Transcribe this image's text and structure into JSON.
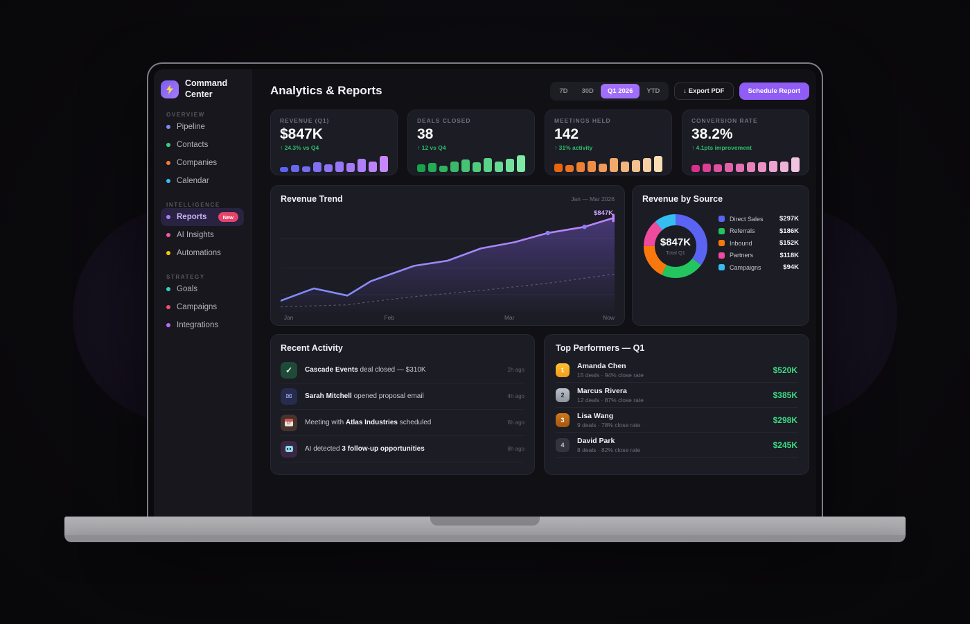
{
  "app": {
    "logo_line1": "Command",
    "logo_line2": "Center"
  },
  "colors": {
    "accent": "#8f5cf5",
    "positive": "#2ebd6b",
    "performer_amount": "#3ddc84"
  },
  "sidebar": {
    "sections": [
      {
        "label": "OVERVIEW",
        "items": [
          {
            "label": "Pipeline",
            "dot": "#8187f5"
          },
          {
            "label": "Contacts",
            "dot": "#34d27b"
          },
          {
            "label": "Companies",
            "dot": "#f97a2b"
          },
          {
            "label": "Calendar",
            "dot": "#38bdf8"
          }
        ]
      },
      {
        "label": "INTELLIGENCE",
        "items": [
          {
            "label": "Reports",
            "dot": "#a97df8",
            "badge": "New"
          },
          {
            "label": "AI Insights",
            "dot": "#f05a9c"
          },
          {
            "label": "Automations",
            "dot": "#f3cξ"
          }
        ]
      },
      {
        "label": "STRATEGY",
        "items": [
          {
            "label": "Goals",
            "dot": "#2dd4bf"
          },
          {
            "label": "Campaigns",
            "dot": "#f1506b"
          },
          {
            "label": "Integrations",
            "dot": "#b36ef5"
          }
        ]
      }
    ]
  },
  "header": {
    "title": "Analytics & Reports",
    "ranges": [
      "7D",
      "30D",
      "Q1 2026",
      "YTD"
    ],
    "active_range": "Q1 2026",
    "export_label": "↓ Export PDF",
    "schedule_label": "Schedule Report"
  },
  "kpis": [
    {
      "label": "REVENUE (Q1)",
      "value": "$847K",
      "delta": "↑ 24.3% vs Q4",
      "bars": [
        0.3,
        0.4,
        0.32,
        0.55,
        0.45,
        0.6,
        0.52,
        0.78,
        0.62,
        0.92
      ],
      "bar_from": "#5d63ee",
      "bar_to": "#c886fb"
    },
    {
      "label": "DEALS CLOSED",
      "value": "38",
      "delta": "↑ 12 vs Q4",
      "bars": [
        0.45,
        0.52,
        0.35,
        0.62,
        0.72,
        0.55,
        0.8,
        0.62,
        0.78,
        0.95
      ],
      "bar_from": "#17a34b",
      "bar_to": "#7fe9a6"
    },
    {
      "label": "MEETINGS HELD",
      "value": "142",
      "delta": "↑ 31% activity",
      "bars": [
        0.5,
        0.42,
        0.58,
        0.66,
        0.48,
        0.8,
        0.6,
        0.68,
        0.82,
        0.92
      ],
      "bar_from": "#e8650e",
      "bar_to": "#f8ddb5"
    },
    {
      "label": "CONVERSION RATE",
      "value": "38.2%",
      "delta": "↑ 4.1pts improvement",
      "bars": [
        0.42,
        0.48,
        0.45,
        0.52,
        0.5,
        0.58,
        0.55,
        0.66,
        0.62,
        0.85
      ],
      "bar_from": "#d8308b",
      "bar_to": "#f3c3e2"
    }
  ],
  "trend": {
    "title": "Revenue Trend",
    "period": "Jan — Mar 2026",
    "peak_label": "$847K",
    "x_labels": [
      "Jan",
      "Feb",
      "Mar",
      "Now"
    ],
    "points": [
      [
        0,
        0.89
      ],
      [
        0.1,
        0.77
      ],
      [
        0.2,
        0.84
      ],
      [
        0.27,
        0.7
      ],
      [
        0.4,
        0.55
      ],
      [
        0.5,
        0.5
      ],
      [
        0.6,
        0.38
      ],
      [
        0.7,
        0.32
      ],
      [
        0.8,
        0.23
      ],
      [
        0.91,
        0.17
      ],
      [
        1,
        0.08
      ]
    ],
    "dashed": [
      [
        0,
        0.95
      ],
      [
        0.2,
        0.93
      ],
      [
        0.27,
        0.9
      ],
      [
        0.4,
        0.85
      ],
      [
        0.6,
        0.79
      ],
      [
        0.8,
        0.72
      ],
      [
        1,
        0.63
      ]
    ],
    "dot_indices": [
      8,
      9
    ],
    "line_from": "#7c8bf7",
    "line_to": "#c084fc",
    "fill_color": "#8b68fa",
    "dot_color": "#8f7df5"
  },
  "sources": {
    "title": "Revenue by Source",
    "center_value": "$847K",
    "center_label": "Total Q1",
    "items": [
      {
        "label": "Direct Sales",
        "value": "$297K",
        "amount": 297,
        "color": "#5a63f2"
      },
      {
        "label": "Referrals",
        "value": "$186K",
        "amount": 186,
        "color": "#22c55e"
      },
      {
        "label": "Inbound",
        "value": "$152K",
        "amount": 152,
        "color": "#f9780d"
      },
      {
        "label": "Partners",
        "value": "$118K",
        "amount": 118,
        "color": "#ee4a9e"
      },
      {
        "label": "Campaigns",
        "value": "$94K",
        "amount": 94,
        "color": "#35bdf2"
      }
    ]
  },
  "activity": {
    "title": "Recent Activity",
    "items": [
      {
        "icon": "check",
        "icon_bg": "#1f4a38",
        "prefix": "",
        "bold": "Cascade Events",
        "suffix": " deal closed — $310K",
        "time": "2h ago"
      },
      {
        "icon": "mail",
        "icon_bg": "#272b4e",
        "prefix": "",
        "bold": "Sarah Mitchell",
        "suffix": " opened proposal email",
        "time": "4h ago"
      },
      {
        "icon": "calendar",
        "icon_bg": "#46332c",
        "prefix": "Meeting with ",
        "bold": "Atlas Industries",
        "suffix": " scheduled",
        "time": "6h ago"
      },
      {
        "icon": "robot",
        "icon_bg": "#3a2745",
        "prefix": "AI detected ",
        "bold": "3 follow-up opportunities",
        "suffix": "",
        "time": "8h ago"
      }
    ],
    "calendar_day": "17"
  },
  "performers": {
    "title": "Top Performers — Q1",
    "items": [
      {
        "rank": "1",
        "name": "Amanda Chen",
        "sub": "15 deals · 94% close rate",
        "amount": "$520K",
        "badge_bg": "linear-gradient(180deg,#fcc133,#f29b18)",
        "badge_fg": "#ffffff"
      },
      {
        "rank": "2",
        "name": "Marcus Rivera",
        "sub": "12 deals · 87% close rate",
        "amount": "$385K",
        "badge_bg": "linear-gradient(180deg,#bcc2cb,#8d949e)",
        "badge_fg": "#24252b"
      },
      {
        "rank": "3",
        "name": "Lisa Wang",
        "sub": "9 deals · 78% close rate",
        "amount": "$298K",
        "badge_bg": "linear-gradient(180deg,#cf7a1c,#a35410)",
        "badge_fg": "#ffffff"
      },
      {
        "rank": "4",
        "name": "David Park",
        "sub": "8 deals · 82% close rate",
        "amount": "$245K",
        "badge_bg": "#33343d",
        "badge_fg": "#c6c6cf"
      }
    ]
  }
}
